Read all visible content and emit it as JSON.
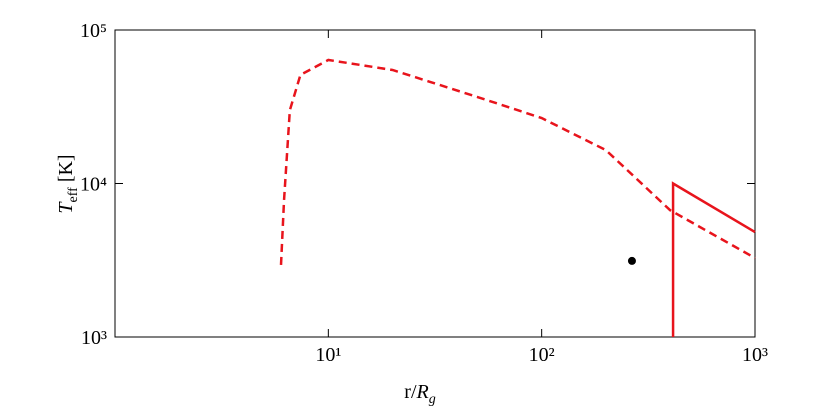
{
  "chart_data": {
    "type": "line",
    "xlabel": [
      "r/",
      "R",
      "g"
    ],
    "ylabel": [
      "T",
      "eff",
      "[K]"
    ],
    "xscale": "log",
    "yscale": "log",
    "xlim": [
      1,
      1000
    ],
    "ylim": [
      1000,
      100000
    ],
    "xticks": [
      {
        "value": 10,
        "label": "10¹"
      },
      {
        "value": 100,
        "label": "10²"
      },
      {
        "value": 1000,
        "label": "10³"
      }
    ],
    "yticks": [
      {
        "value": 1000,
        "label": "10³"
      },
      {
        "value": 10000,
        "label": "10⁴"
      },
      {
        "value": 100000,
        "label": "10⁵"
      }
    ],
    "series": [
      {
        "color": "#e8141c",
        "style": "dashed",
        "x": [
          6,
          6.2,
          6.6,
          7.4,
          10,
          20,
          30,
          50,
          100,
          200,
          400,
          1000
        ],
        "values": [
          2950,
          7800,
          30000,
          51000,
          63800,
          54900,
          45900,
          36600,
          26700,
          16500,
          6700,
          3270
        ]
      },
      {
        "color": "#e8141c",
        "style": "solid",
        "x": [
          413,
          413,
          1000
        ],
        "values": [
          1000,
          10000,
          4830
        ]
      },
      {
        "color": "#000000",
        "style": "point",
        "x": [
          265
        ],
        "values": [
          3130
        ]
      }
    ]
  }
}
